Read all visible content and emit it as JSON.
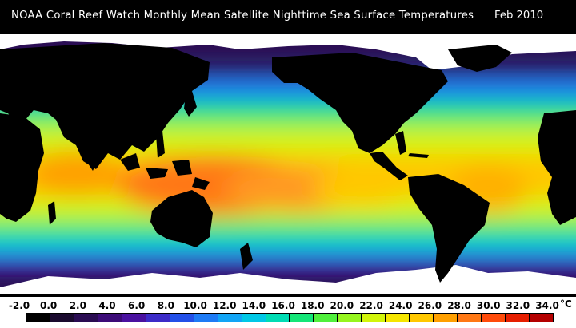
{
  "header": {
    "title": "NOAA Coral Reef Watch Monthly Mean Satellite Nighttime Sea Surface Temperatures",
    "date": "Feb 2010"
  },
  "map": {
    "land_color": "#000000",
    "ice_color": "#ffffff",
    "sea_surface_temperature_range": [
      -2.0,
      34.0
    ]
  },
  "legend": {
    "ticks": [
      "-2.0",
      "0.0",
      "2.0",
      "4.0",
      "6.0",
      "8.0",
      "10.0",
      "12.0",
      "14.0",
      "16.0",
      "18.0",
      "20.0",
      "22.0",
      "24.0",
      "26.0",
      "28.0",
      "30.0",
      "32.0",
      "34.0"
    ],
    "unit": "°C",
    "colors": [
      "#000000",
      "#1a0a2e",
      "#2a0c52",
      "#3c0c78",
      "#4a12a0",
      "#3c2cc8",
      "#2350e8",
      "#1e7bf5",
      "#12a5f5",
      "#00c8e6",
      "#00dcb4",
      "#14e678",
      "#50f03c",
      "#96f51e",
      "#d2f50a",
      "#f5e600",
      "#ffc800",
      "#ffa000",
      "#ff7814",
      "#ff4b0a",
      "#e61e00",
      "#b40000"
    ]
  }
}
